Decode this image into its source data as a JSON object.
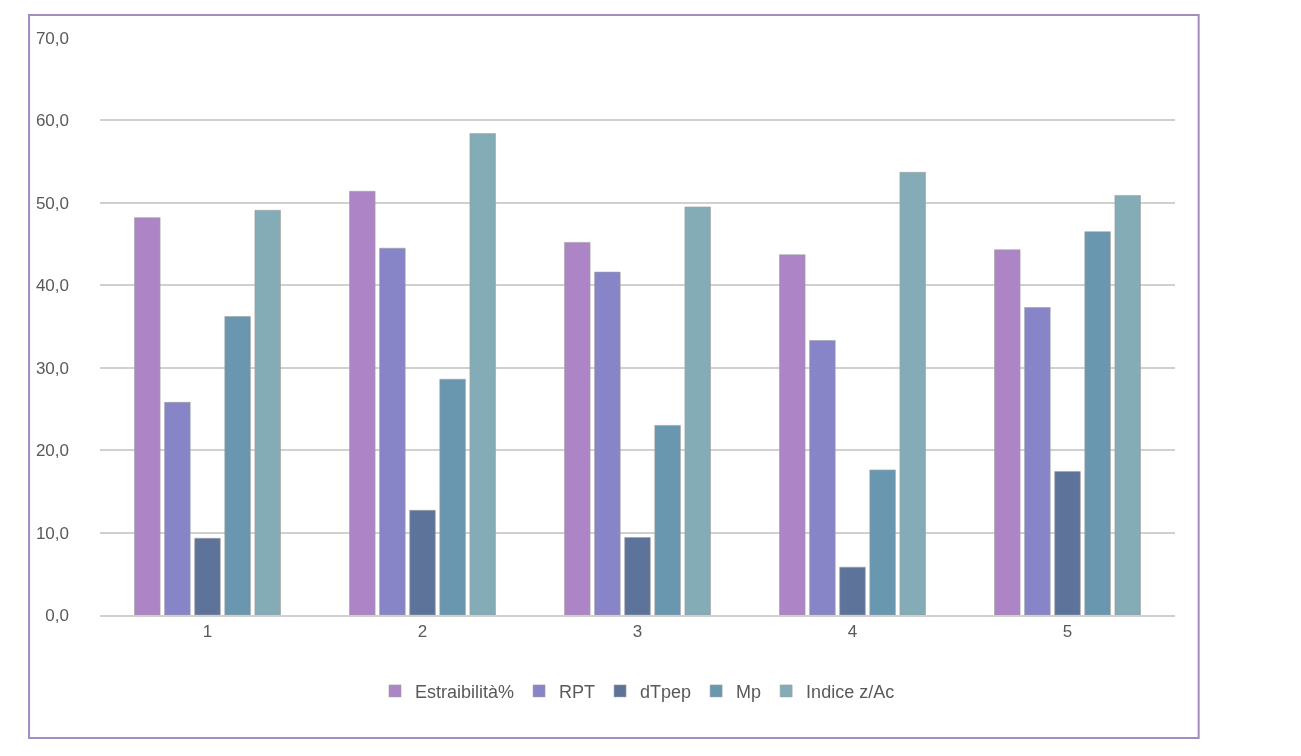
{
  "chart_data": {
    "type": "bar",
    "categories": [
      "1",
      "2",
      "3",
      "4",
      "5"
    ],
    "series": [
      {
        "name": "Estraibilità%",
        "color": "#ad84c6",
        "values": [
          48.2,
          51.4,
          45.2,
          43.7,
          44.3
        ]
      },
      {
        "name": "RPT",
        "color": "#8784c7",
        "values": [
          25.8,
          44.5,
          41.6,
          33.3,
          37.3
        ]
      },
      {
        "name": "dTpep",
        "color": "#5d739a",
        "values": [
          9.3,
          12.7,
          9.4,
          5.8,
          17.4
        ]
      },
      {
        "name": "Mp",
        "color": "#6997af",
        "values": [
          36.2,
          28.6,
          23.0,
          17.6,
          46.5
        ]
      },
      {
        "name": "Indice z/Ac",
        "color": "#84acb6",
        "values": [
          49.1,
          58.4,
          49.5,
          53.7,
          50.9
        ]
      }
    ],
    "ylim": [
      0,
      70
    ],
    "yticks": [
      {
        "value": 0,
        "label": "0,0"
      },
      {
        "value": 10,
        "label": "10,0"
      },
      {
        "value": 20,
        "label": "20,0"
      },
      {
        "value": 30,
        "label": "30,0"
      },
      {
        "value": 40,
        "label": "40,0"
      },
      {
        "value": 50,
        "label": "50,0"
      },
      {
        "value": 60,
        "label": "60,0"
      },
      {
        "value": 70,
        "label": "70,0"
      }
    ],
    "grid": "y",
    "legend": "bottom"
  }
}
